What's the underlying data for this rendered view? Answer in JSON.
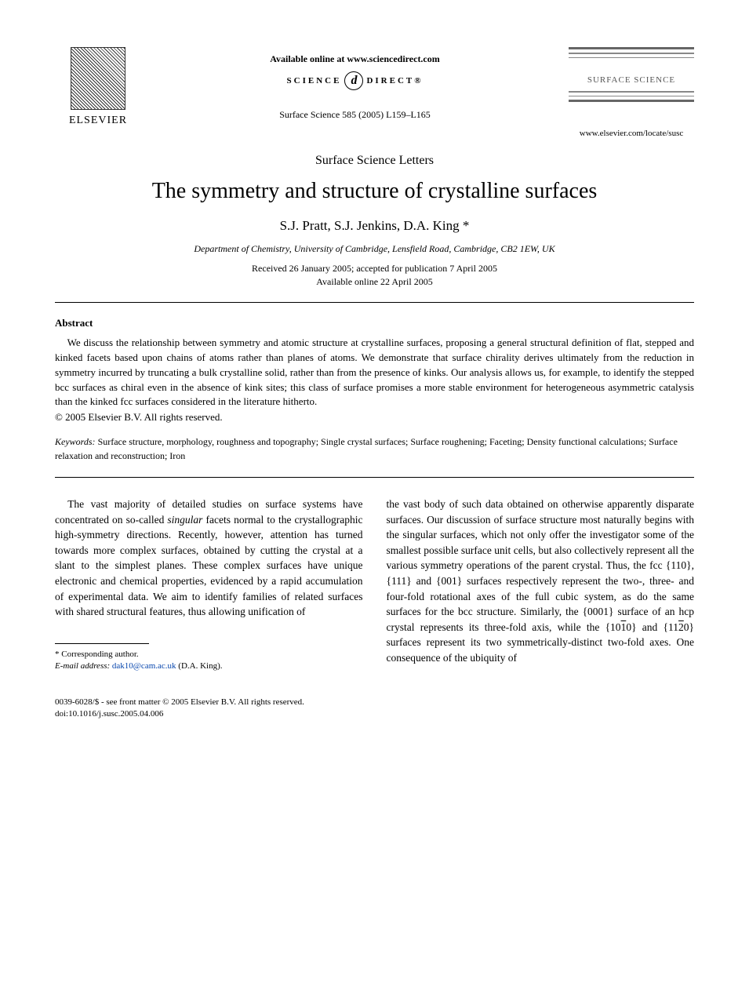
{
  "header": {
    "publisher_name": "ELSEVIER",
    "available_online": "Available online at www.sciencedirect.com",
    "sd_left": "SCIENCE",
    "sd_logo": "d",
    "sd_right": "DIRECT®",
    "journal_ref": "Surface Science 585 (2005) L159–L165",
    "journal_box_title": "SURFACE SCIENCE",
    "journal_url": "www.elsevier.com/locate/susc"
  },
  "article": {
    "section_label": "Surface Science Letters",
    "title": "The symmetry and structure of crystalline surfaces",
    "authors": "S.J. Pratt, S.J. Jenkins, D.A. King *",
    "affiliation": "Department of Chemistry, University of Cambridge, Lensfield Road, Cambridge, CB2 1EW, UK",
    "received_line": "Received 26 January 2005; accepted for publication 7 April 2005",
    "available_line": "Available online 22 April 2005"
  },
  "abstract": {
    "heading": "Abstract",
    "text": "We discuss the relationship between symmetry and atomic structure at crystalline surfaces, proposing a general structural definition of flat, stepped and kinked facets based upon chains of atoms rather than planes of atoms. We demonstrate that surface chirality derives ultimately from the reduction in symmetry incurred by truncating a bulk crystalline solid, rather than from the presence of kinks. Our analysis allows us, for example, to identify the stepped bcc surfaces as chiral even in the absence of kink sites; this class of surface promises a more stable environment for heterogeneous asymmetric catalysis than the kinked fcc surfaces considered in the literature hitherto.",
    "copyright": "© 2005 Elsevier B.V. All rights reserved."
  },
  "keywords": {
    "label": "Keywords:",
    "text": " Surface structure, morphology, roughness and topography; Single crystal surfaces; Surface roughening; Faceting; Density functional calculations; Surface relaxation and reconstruction; Iron"
  },
  "body": {
    "col1_p1_a": "The vast majority of detailed studies on surface systems have concentrated on so-called ",
    "col1_p1_em": "singular",
    "col1_p1_b": " facets normal to the crystallographic high-symmetry directions. Recently, however, attention has turned towards more complex surfaces, obtained by cutting the crystal at a slant to the simplest planes. These complex surfaces have unique electronic and chemical properties, evidenced by a rapid accumulation of experimental data. We aim to identify families of related surfaces with shared structural features, thus allowing unification of",
    "col2_p1": "the vast body of such data obtained on otherwise apparently disparate surfaces. Our discussion of surface structure most naturally begins with the singular surfaces, which not only offer the investigator some of the smallest possible surface unit cells, but also collectively represent all the various symmetry operations of the parent crystal. Thus, the fcc {110}, {111} and {001} surfaces respectively represent the two-, three- and four-fold rotational axes of the full cubic system, as do the same surfaces for the bcc structure. Similarly, the {0001} surface of an hcp crystal represents its three-fold axis, while the {10",
    "col2_over1": "1",
    "col2_p1b": "0} and {11",
    "col2_over2": "2",
    "col2_p1c": "0} surfaces represent its two symmetrically-distinct two-fold axes. One consequence of the ubiquity of"
  },
  "footnote": {
    "corr": "* Corresponding author.",
    "email_label": "E-mail address:",
    "email": "dak10@cam.ac.uk",
    "email_suffix": " (D.A. King)."
  },
  "footer": {
    "line1": "0039-6028/$ - see front matter © 2005 Elsevier B.V. All rights reserved.",
    "line2": "doi:10.1016/j.susc.2005.04.006"
  },
  "colors": {
    "text": "#000000",
    "link": "#0645ad",
    "journal_bar": "#888888",
    "background": "#ffffff"
  },
  "typography": {
    "title_fontsize_pt": 21,
    "authors_fontsize_pt": 13,
    "body_fontsize_pt": 10,
    "abstract_fontsize_pt": 10,
    "footnote_fontsize_pt": 8,
    "font_family": "serif"
  }
}
